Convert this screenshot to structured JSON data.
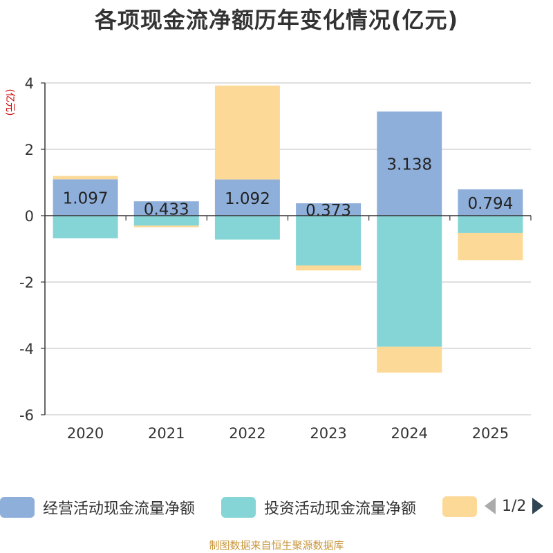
{
  "chart_data": {
    "type": "bar",
    "stacked": true,
    "title": "各项现金流净额历年变化情况(亿元)",
    "ylabel": "(亿元)",
    "xlabel": "",
    "ylim": [
      -6,
      4
    ],
    "yticks": [
      4,
      2,
      0,
      -2,
      -4,
      -6
    ],
    "categories": [
      "2020",
      "2021",
      "2022",
      "2023",
      "2024",
      "2025"
    ],
    "series": [
      {
        "name": "经营活动现金流量净额",
        "color": "#8fafdb",
        "values": [
          1.097,
          0.433,
          1.092,
          0.373,
          3.138,
          0.794
        ],
        "show_labels": true
      },
      {
        "name": "投资活动现金流量净额",
        "color": "#85d5d7",
        "values": [
          -0.68,
          -0.3,
          -0.72,
          -1.5,
          -3.95,
          -0.52
        ],
        "show_labels": false
      },
      {
        "name": "",
        "color": "#fdd998",
        "values": [
          0.1,
          -0.05,
          2.83,
          -0.15,
          -0.78,
          -0.82
        ],
        "show_labels": false
      }
    ],
    "legend_position": "bottom"
  },
  "legend": {
    "items": [
      "经营活动现金流量净额",
      "投资活动现金流量净额",
      ""
    ],
    "page": "1/2"
  },
  "source": "制图数据来自恒生聚源数据库"
}
